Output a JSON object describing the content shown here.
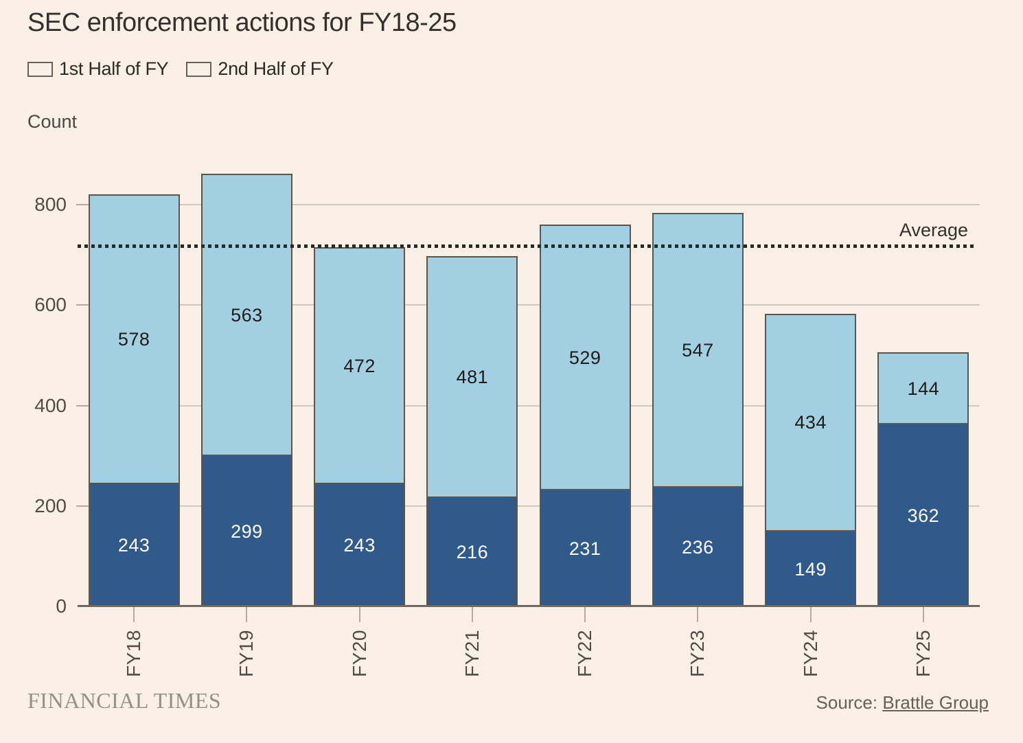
{
  "title": "SEC enforcement actions for FY18-25",
  "y_axis_title": "Count",
  "average_label": "Average",
  "footer": {
    "brand": "FINANCIAL TIMES",
    "source_prefix": "Source:",
    "source_link": "Brattle Group"
  },
  "colors": {
    "background": "#FAF0E5",
    "first_half": "#2F5A8A",
    "second_half": "#A3CFE2",
    "bar_border": "#5A554F",
    "average_line": "#2A2825"
  },
  "chart_data": {
    "type": "bar",
    "stacked": true,
    "title": "SEC enforcement actions for FY18-25",
    "ylabel": "Count",
    "xlabel": "",
    "categories": [
      "FY18",
      "FY19",
      "FY20",
      "FY21",
      "FY22",
      "FY23",
      "FY24",
      "FY25"
    ],
    "series": [
      {
        "name": "1st Half of FY",
        "color": "#2F5A8A",
        "label_color": "#FFFFFF",
        "values": [
          243,
          299,
          243,
          216,
          231,
          236,
          149,
          362
        ]
      },
      {
        "name": "2nd Half of FY",
        "color": "#A3CFE2",
        "label_color": "#1F1D1B",
        "values": [
          578,
          563,
          472,
          481,
          529,
          547,
          434,
          144
        ]
      }
    ],
    "totals": [
      821,
      862,
      715,
      697,
      760,
      783,
      583,
      506
    ],
    "average": 716,
    "yticks": [
      0,
      200,
      400,
      600,
      800
    ],
    "ylim": [
      0,
      920
    ],
    "grid": true,
    "legend_position": "top-left",
    "bar_labels": true
  }
}
